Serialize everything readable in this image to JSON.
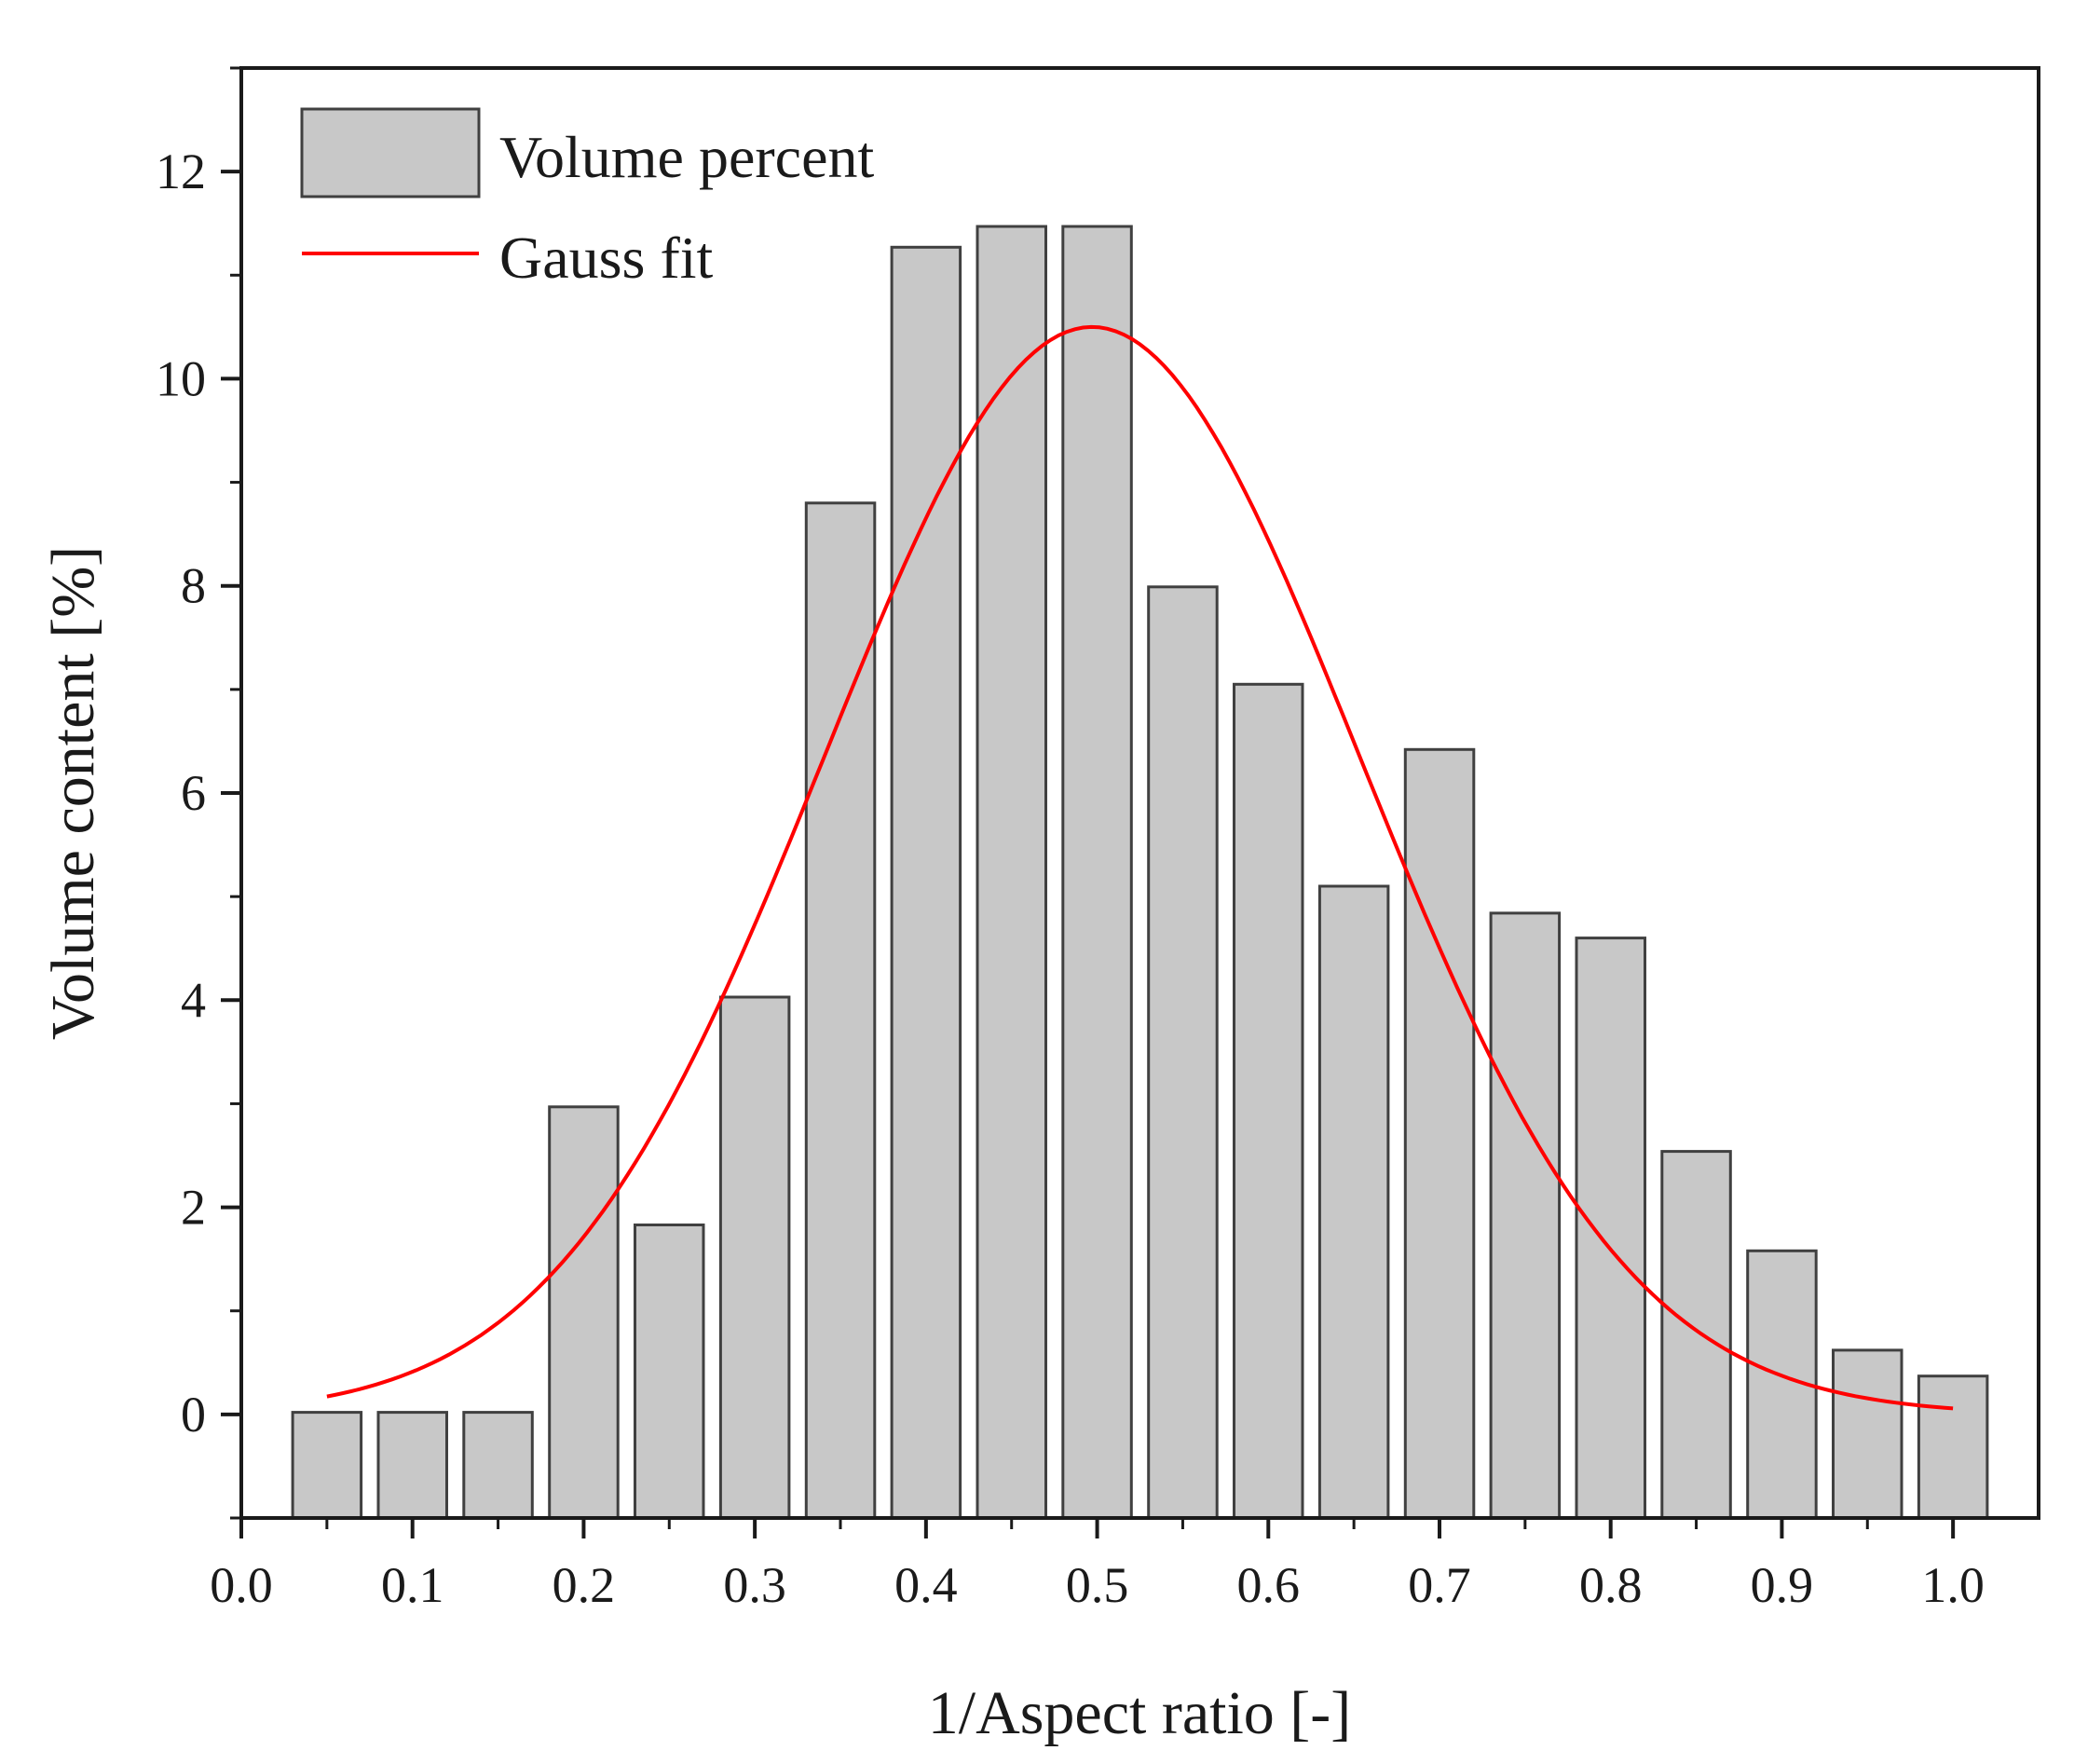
{
  "chart_data": {
    "type": "bar",
    "title": "",
    "xlabel": "1/Aspect ratio [-]",
    "ylabel": "Volume content [%]",
    "xlim": [
      0.0,
      1.05
    ],
    "ylim": [
      -1.0,
      13.0
    ],
    "xticks": [
      0.0,
      0.1,
      0.2,
      0.3,
      0.4,
      0.5,
      0.6,
      0.7,
      0.8,
      0.9,
      1.0
    ],
    "xtick_labels": [
      "0.0",
      "0.1",
      "0.2",
      "0.3",
      "0.4",
      "0.5",
      "0.6",
      "0.7",
      "0.8",
      "0.9",
      "1.0"
    ],
    "yticks": [
      0,
      2,
      4,
      6,
      8,
      10,
      12
    ],
    "ytick_labels": [
      "0",
      "2",
      "4",
      "6",
      "8",
      "10",
      "12"
    ],
    "bar_width": 0.04,
    "legend_position": "top-left",
    "series": [
      {
        "name": "Volume percent",
        "kind": "bar",
        "color": "#c8c8c8",
        "edge_color": "#404040",
        "x": [
          0.05,
          0.1,
          0.15,
          0.2,
          0.25,
          0.3,
          0.35,
          0.4,
          0.45,
          0.5,
          0.55,
          0.6,
          0.65,
          0.7,
          0.75,
          0.8,
          0.85,
          0.9,
          0.95,
          1.0
        ],
        "values": [
          0.0,
          0.0,
          0.02,
          2.97,
          1.83,
          4.03,
          8.8,
          11.27,
          11.47,
          11.47,
          7.99,
          7.05,
          5.1,
          6.42,
          4.84,
          4.6,
          2.54,
          1.58,
          0.62,
          0.37
        ]
      },
      {
        "name": "Gauss fit",
        "kind": "line",
        "color": "#ff0000",
        "xc": 0.497,
        "amplitude": 10.5,
        "sigma": 0.156,
        "x_range": [
          0.05,
          1.0
        ]
      }
    ]
  }
}
